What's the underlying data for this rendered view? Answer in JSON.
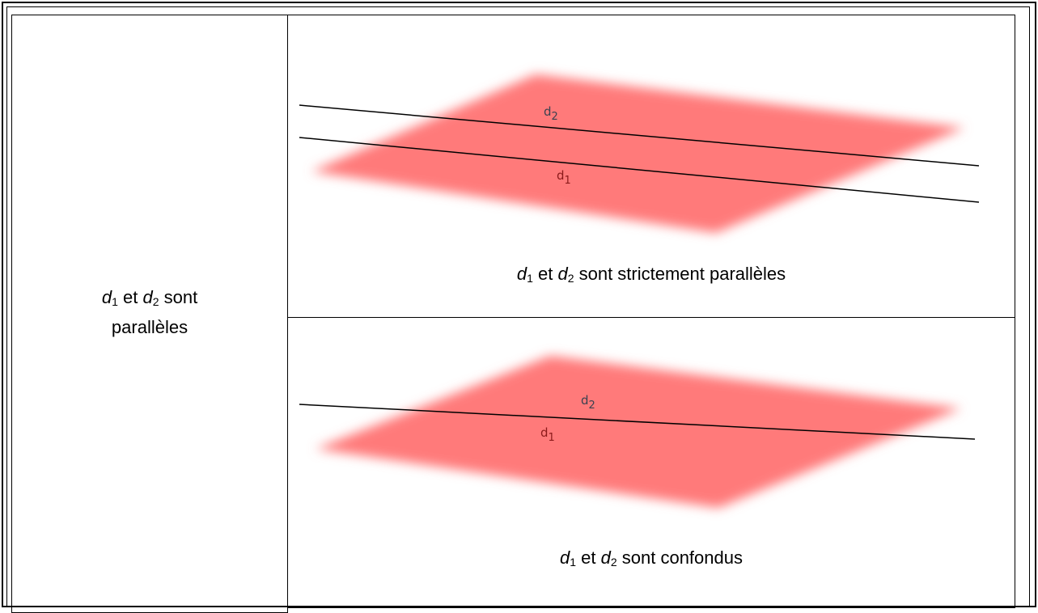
{
  "table": {
    "left_label": [
      "d",
      "1",
      " et ",
      "d",
      "2",
      " sont",
      "parallèles"
    ],
    "rows": [
      {
        "caption": [
          "d",
          "1",
          " et ",
          "d",
          "2",
          " sont strictement parallèles"
        ],
        "diagram": {
          "line_labels": [
            {
              "name": "d",
              "index": "2"
            },
            {
              "name": "d",
              "index": "1"
            }
          ]
        }
      },
      {
        "caption": [
          "d",
          "1",
          " et ",
          "d",
          "2",
          " sont confondus"
        ],
        "diagram": {
          "line_labels": [
            {
              "name": "d",
              "index": "2"
            },
            {
              "name": "d",
              "index": "1"
            }
          ]
        }
      }
    ]
  }
}
